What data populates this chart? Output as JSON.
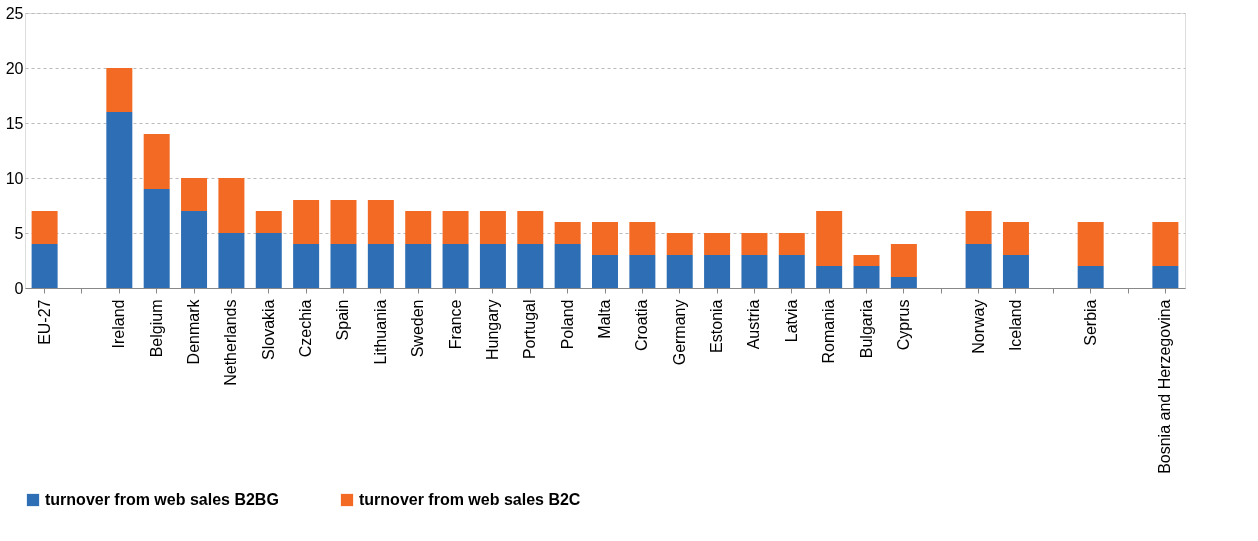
{
  "chart_data": {
    "type": "bar",
    "stacked": true,
    "categories": [
      "EU-27",
      null,
      "Ireland",
      "Belgium",
      "Denmark",
      "Netherlands",
      "Slovakia",
      "Czechia",
      "Spain",
      "Lithuania",
      "Sweden",
      "France",
      "Hungary",
      "Portugal",
      "Poland",
      "Malta",
      "Croatia",
      "Germany",
      "Estonia",
      "Austria",
      "Latvia",
      "Romania",
      "Bulgaria",
      "Cyprus",
      null,
      "Norway",
      "Iceland",
      null,
      "Serbia",
      null,
      "Bosnia and Herzegovina"
    ],
    "series": [
      {
        "name": "turnover from web sales B2BG",
        "color": "#2e6eb5",
        "values": [
          4,
          null,
          16,
          9,
          7,
          5,
          5,
          4,
          4,
          4,
          4,
          4,
          4,
          4,
          4,
          3,
          3,
          3,
          3,
          3,
          3,
          2,
          2,
          1,
          null,
          4,
          3,
          null,
          2,
          null,
          2
        ]
      },
      {
        "name": "turnover from web sales B2C",
        "color": "#f26a24",
        "values": [
          3,
          null,
          4,
          5,
          3,
          5,
          2,
          4,
          4,
          4,
          3,
          3,
          3,
          3,
          2,
          3,
          3,
          2,
          2,
          2,
          2,
          5,
          1,
          3,
          null,
          3,
          3,
          null,
          4,
          null,
          4
        ]
      }
    ],
    "ylim": [
      0,
      25
    ],
    "yticks": [
      0,
      5,
      10,
      15,
      20,
      25
    ],
    "grid": "y",
    "legend": "bottom"
  }
}
